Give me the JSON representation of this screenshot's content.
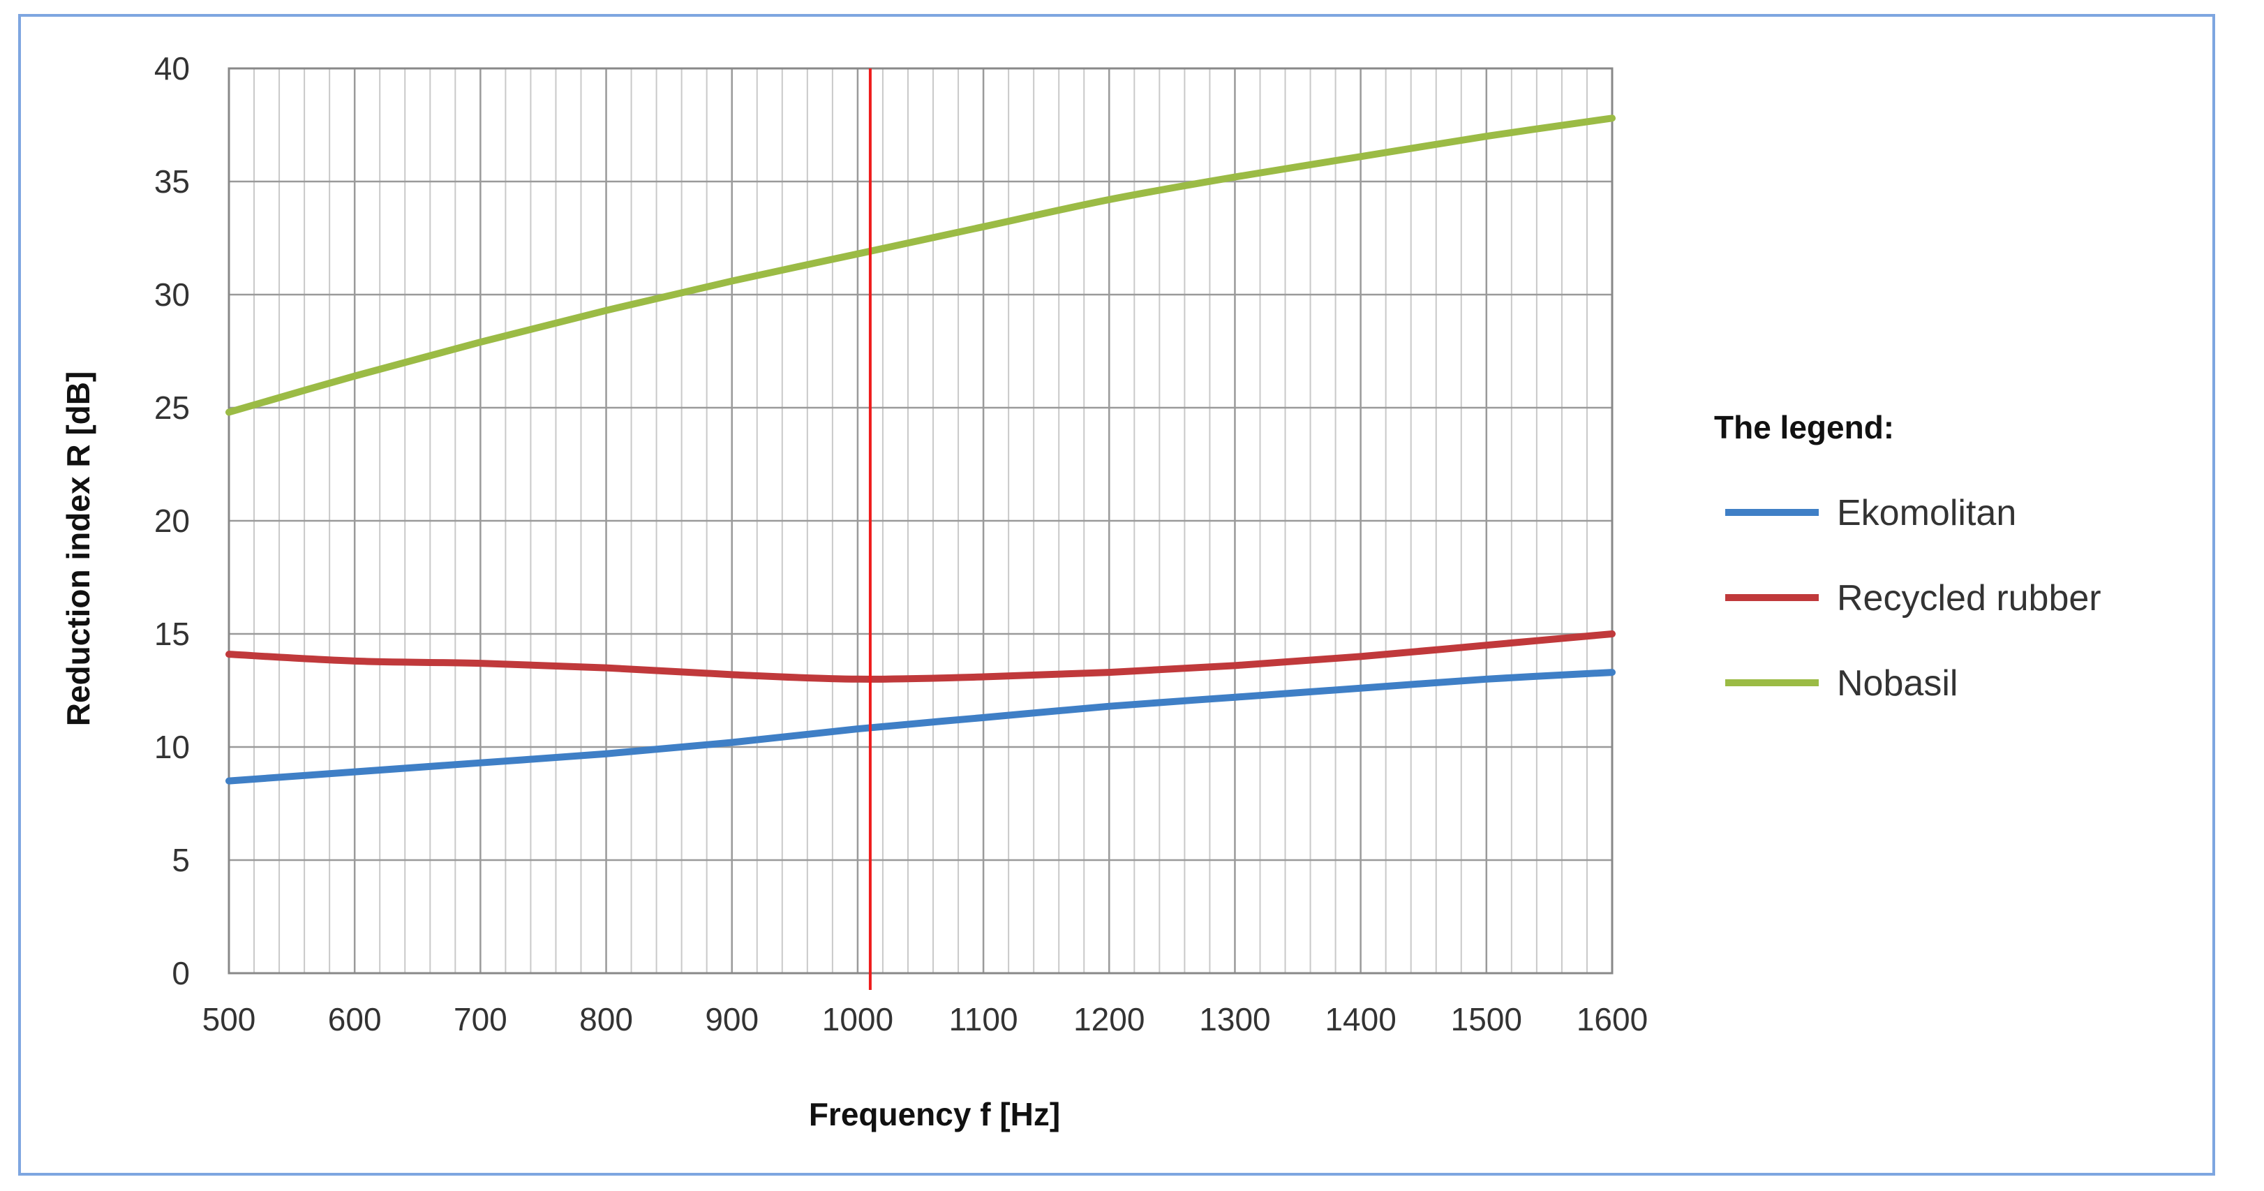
{
  "chart_data": {
    "type": "line",
    "xlabel": "Frequency f [Hz]",
    "ylabel": "Reduction index R  [dB]",
    "xlim": [
      500,
      1600
    ],
    "ylim": [
      0,
      40
    ],
    "x_ticks": [
      500,
      600,
      700,
      800,
      900,
      1000,
      1100,
      1200,
      1300,
      1400,
      1500,
      1600
    ],
    "y_ticks": [
      0,
      5,
      10,
      15,
      20,
      25,
      30,
      35,
      40
    ],
    "x_minor_step": 20,
    "grid": true,
    "legend": {
      "title": "The legend:",
      "position": "right"
    },
    "reference_line": {
      "x": 1010,
      "color": "#ee1c1c"
    },
    "x": [
      500,
      600,
      700,
      800,
      900,
      1000,
      1100,
      1200,
      1300,
      1400,
      1500,
      1600
    ],
    "series": [
      {
        "name": "Ekomolitan",
        "color": "#3f7fc6",
        "values": [
          8.5,
          8.9,
          9.3,
          9.7,
          10.2,
          10.8,
          11.3,
          11.8,
          12.2,
          12.6,
          13.0,
          13.3
        ]
      },
      {
        "name": "Recycled rubber",
        "color": "#c0393b",
        "values": [
          14.1,
          13.8,
          13.7,
          13.5,
          13.2,
          13.0,
          13.1,
          13.3,
          13.6,
          14.0,
          14.5,
          15.0
        ]
      },
      {
        "name": "Nobasil",
        "color": "#9bbb45",
        "values": [
          24.8,
          26.4,
          27.9,
          29.3,
          30.6,
          31.8,
          33.0,
          34.2,
          35.2,
          36.1,
          37.0,
          37.8
        ]
      }
    ]
  }
}
